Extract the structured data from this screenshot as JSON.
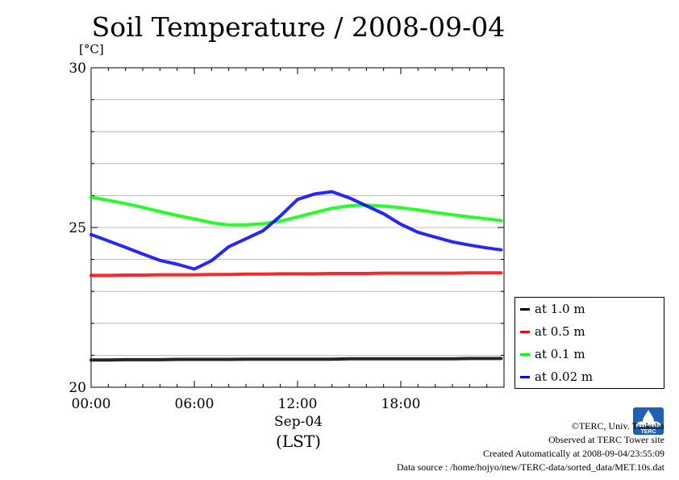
{
  "title": "Soil Temperature / 2008-09-04",
  "y_unit": "[°C]",
  "x_date_label": "Sep-04",
  "x_zone_label": "(LST)",
  "footer": {
    "copyright": "©TERC, Univ. Tsukuba",
    "observed": "Observed at TERC Tower site",
    "created": "Created Automatically at 2008-09-04/23:55:09",
    "source": "Data source : /home/hojyo/new/TERC-data/sorted_data/MET.10s.dat"
  },
  "logo_text": "TERC",
  "chart_data": {
    "type": "line",
    "title": "Soil Temperature / 2008-09-04",
    "ylabel": "[°C]",
    "xlabel": "Sep-04 (LST)",
    "ylim": [
      20,
      30
    ],
    "xlim": [
      "00:00",
      "24:00"
    ],
    "yticks": [
      "20",
      "25",
      "30"
    ],
    "xticks": [
      "00:00",
      "06:00",
      "12:00",
      "18:00"
    ],
    "grid": true,
    "legend_position": "outside-right",
    "x": [
      "00:00",
      "01:00",
      "02:00",
      "03:00",
      "04:00",
      "05:00",
      "06:00",
      "07:00",
      "08:00",
      "09:00",
      "10:00",
      "11:00",
      "12:00",
      "13:00",
      "14:00",
      "15:00",
      "16:00",
      "17:00",
      "18:00",
      "19:00",
      "20:00",
      "21:00",
      "22:00",
      "23:00",
      "23:50"
    ],
    "series": [
      {
        "name": "at 1.0 m",
        "color": "#000000",
        "values": [
          20.85,
          20.85,
          20.86,
          20.86,
          20.86,
          20.87,
          20.87,
          20.87,
          20.87,
          20.88,
          20.88,
          20.88,
          20.88,
          20.88,
          20.88,
          20.89,
          20.89,
          20.89,
          20.89,
          20.89,
          20.89,
          20.89,
          20.9,
          20.9,
          20.9
        ]
      },
      {
        "name": "at 0.5 m",
        "color": "#ff0000",
        "values": [
          23.5,
          23.5,
          23.51,
          23.51,
          23.52,
          23.52,
          23.52,
          23.53,
          23.53,
          23.54,
          23.54,
          23.55,
          23.55,
          23.55,
          23.56,
          23.56,
          23.56,
          23.57,
          23.57,
          23.57,
          23.57,
          23.57,
          23.58,
          23.58,
          23.58
        ]
      },
      {
        "name": "at 0.1 m",
        "color": "#00ff00",
        "values": [
          25.95,
          25.85,
          25.75,
          25.63,
          25.5,
          25.38,
          25.27,
          25.15,
          25.08,
          25.08,
          25.12,
          25.2,
          25.33,
          25.47,
          25.6,
          25.68,
          25.7,
          25.67,
          25.62,
          25.55,
          25.47,
          25.4,
          25.33,
          25.27,
          25.22
        ]
      },
      {
        "name": "at 0.02 m",
        "color": "#0000ff",
        "values": [
          24.78,
          24.58,
          24.38,
          24.17,
          23.97,
          23.85,
          23.7,
          23.96,
          24.4,
          24.65,
          24.9,
          25.36,
          25.88,
          26.05,
          26.12,
          25.93,
          25.68,
          25.43,
          25.1,
          24.85,
          24.7,
          24.55,
          24.45,
          24.36,
          24.3
        ]
      }
    ]
  }
}
